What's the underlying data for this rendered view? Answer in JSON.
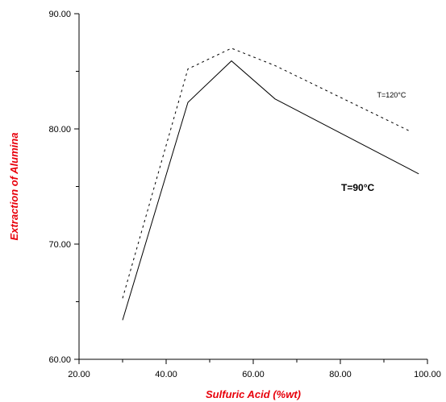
{
  "chart_data": {
    "type": "line",
    "title": "",
    "xlabel": "Sulfuric Acid (%wt)",
    "ylabel": "Extraction of Alumina",
    "label_color": "#e8000b",
    "xlim": [
      20,
      100
    ],
    "ylim": [
      60,
      90
    ],
    "xticks": [
      "20.00",
      "40.00",
      "60.00",
      "80.00",
      "100.00"
    ],
    "yticks": [
      "60.00",
      "70.00",
      "80.00",
      "90.00"
    ],
    "grid": false,
    "series": [
      {
        "name": "T=120°C",
        "style": "dashed",
        "label_style": "small",
        "x": [
          30,
          45,
          55,
          65,
          96
        ],
        "y": [
          65.3,
          85.2,
          87.0,
          85.5,
          79.8
        ]
      },
      {
        "name": "T=90°C",
        "style": "solid",
        "label_style": "bold",
        "x": [
          30,
          45,
          55,
          65,
          98
        ],
        "y": [
          63.4,
          82.3,
          85.9,
          82.6,
          76.1
        ]
      }
    ]
  }
}
